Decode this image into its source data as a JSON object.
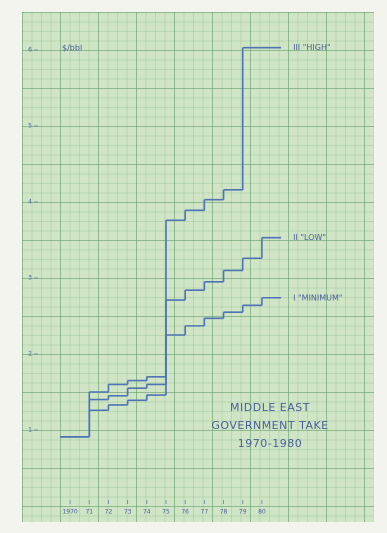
{
  "chart_data": {
    "type": "step",
    "title": [
      "MIDDLE EAST",
      "GOVERNMENT TAKE",
      "1970-1980"
    ],
    "y_label": "$/bbl",
    "x": [
      1970,
      1971,
      1972,
      1973,
      1974,
      1975,
      1976,
      1977,
      1978,
      1979,
      1980
    ],
    "xlim": [
      1969.5,
      1980.5
    ],
    "xticks": [
      {
        "value": 1970,
        "label": "1970"
      },
      {
        "value": 1971,
        "label": "71"
      },
      {
        "value": 1972,
        "label": "72"
      },
      {
        "value": 1973,
        "label": "73"
      },
      {
        "value": 1974,
        "label": "74"
      },
      {
        "value": 1975,
        "label": "75"
      },
      {
        "value": 1976,
        "label": "76"
      },
      {
        "value": 1977,
        "label": "77"
      },
      {
        "value": 1978,
        "label": "78"
      },
      {
        "value": 1979,
        "label": "79"
      },
      {
        "value": 1980,
        "label": "80"
      }
    ],
    "ylim": [
      0.5,
      6.15
    ],
    "yticks": [
      1,
      2,
      3,
      4,
      5,
      6
    ],
    "series": [
      {
        "name": "III \"HIGH\"",
        "color": "#4f73b5",
        "values": [
          0.91,
          1.5,
          1.6,
          1.65,
          1.7,
          3.76,
          3.89,
          4.03,
          4.16,
          6.03,
          6.03
        ]
      },
      {
        "name": "II \"LOW\"",
        "color": "#4f73b5",
        "values": [
          0.91,
          1.4,
          1.45,
          1.55,
          1.6,
          2.71,
          2.84,
          2.95,
          3.1,
          3.26,
          3.53
        ]
      },
      {
        "name": "I \"MINIMUM\"",
        "color": "#4f73b5",
        "values": [
          0.91,
          1.26,
          1.33,
          1.39,
          1.46,
          2.25,
          2.37,
          2.47,
          2.55,
          2.64,
          2.74
        ]
      }
    ]
  }
}
